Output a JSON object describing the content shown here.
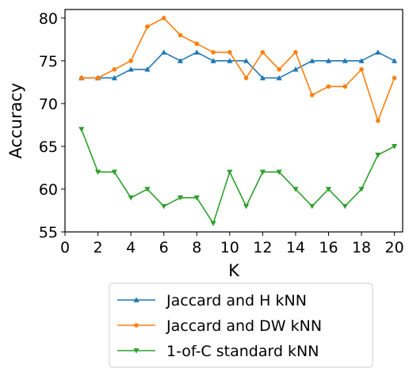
{
  "chart_data": {
    "type": "line",
    "title": "",
    "xlabel": "K",
    "ylabel": "Accuracy",
    "xlim": [
      0,
      20.5
    ],
    "ylim": [
      55,
      81
    ],
    "xticks": [
      0,
      2,
      4,
      6,
      8,
      10,
      12,
      14,
      16,
      18,
      20
    ],
    "yticks": [
      55,
      60,
      65,
      70,
      75,
      80
    ],
    "grid": false,
    "legend_position": "below",
    "x": [
      1,
      2,
      3,
      4,
      5,
      6,
      7,
      8,
      9,
      10,
      11,
      12,
      13,
      14,
      15,
      16,
      17,
      18,
      19,
      20
    ],
    "series": [
      {
        "name": "Jaccard and H kNN",
        "color": "#1f77b4",
        "marker": "triangle-up",
        "values": [
          73,
          73,
          73,
          74,
          74,
          76,
          75,
          76,
          75,
          75,
          75,
          73,
          73,
          74,
          75,
          75,
          75,
          75,
          76,
          75
        ]
      },
      {
        "name": "Jaccard and DW kNN",
        "color": "#ff7f0e",
        "marker": "circle",
        "values": [
          73,
          73,
          74,
          75,
          79,
          80,
          78,
          77,
          76,
          76,
          73,
          76,
          74,
          76,
          71,
          72,
          72,
          74,
          68,
          73
        ]
      },
      {
        "name": "1-of-C standard kNN",
        "color": "#2ca02c",
        "marker": "triangle-down",
        "values": [
          67,
          62,
          62,
          59,
          60,
          58,
          59,
          59,
          56,
          62,
          58,
          62,
          62,
          60,
          58,
          60,
          58,
          60,
          64,
          65
        ]
      }
    ]
  }
}
